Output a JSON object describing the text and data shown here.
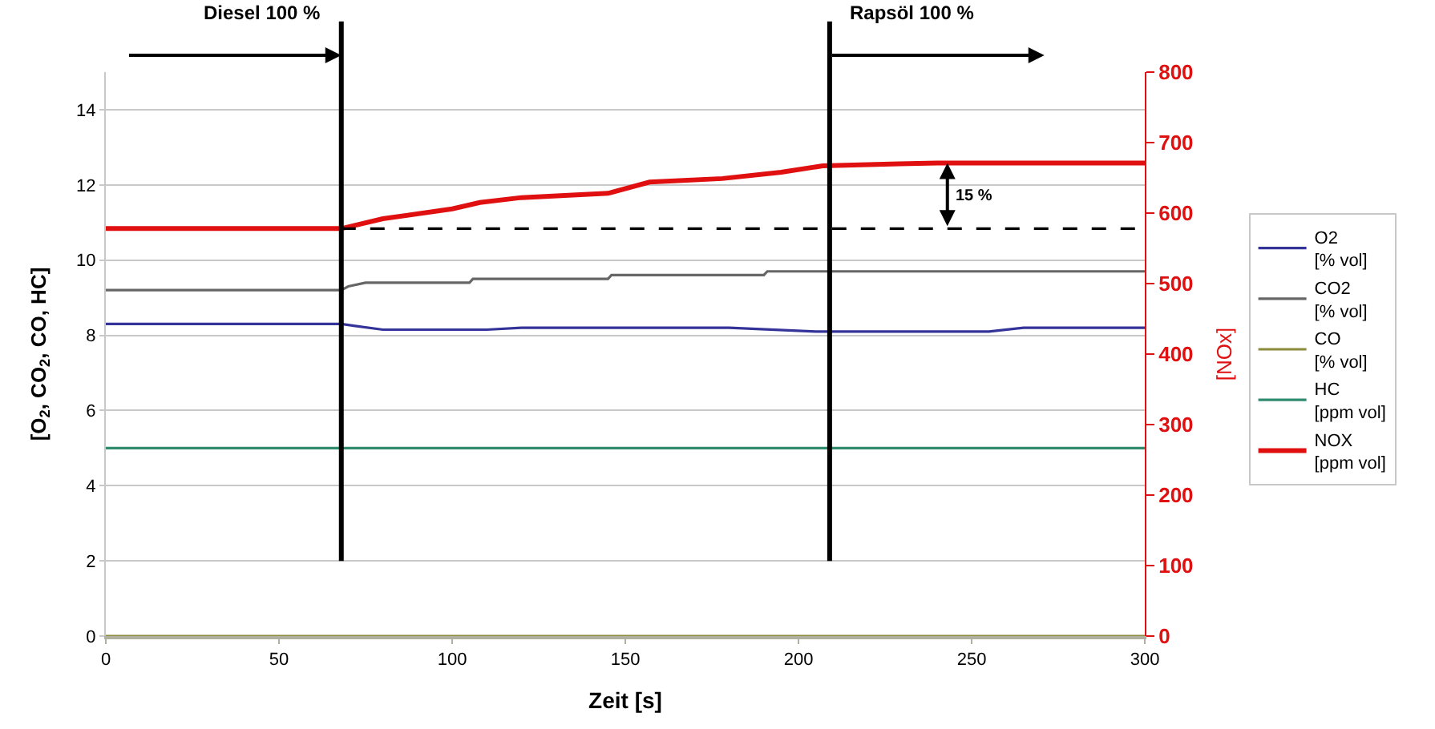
{
  "chart_data": {
    "type": "line",
    "xlabel": "Zeit [s]",
    "ylabel": "[O$_{2}$, CO$_{2}$, CO, HC]",
    "y2label": "[NOx]",
    "xlim": [
      0,
      300
    ],
    "xticks": [
      0,
      50,
      100,
      150,
      200,
      250,
      300
    ],
    "ylim": [
      0,
      15
    ],
    "yticks": [
      0,
      2,
      4,
      6,
      8,
      10,
      12,
      14
    ],
    "y2lim": [
      0,
      800
    ],
    "y2ticks": [
      0,
      100,
      200,
      300,
      400,
      500,
      600,
      700,
      800
    ],
    "grid": "y",
    "legend": "right",
    "marker": "none",
    "line_style": "solid",
    "series": [
      {
        "name": "O2\n[% vol]",
        "color": "#333399",
        "x": [
          0,
          68,
          72,
          80,
          110,
          120,
          180,
          205,
          255,
          265,
          300
        ],
        "values": [
          8.3,
          8.3,
          8.25,
          8.15,
          8.15,
          8.2,
          8.2,
          8.1,
          8.1,
          8.2,
          8.2
        ]
      },
      {
        "name": "CO2\n[% vol]",
        "color": "#666666",
        "x": [
          0,
          68,
          70,
          75,
          105,
          106,
          145,
          146,
          190,
          191,
          300
        ],
        "values": [
          9.2,
          9.2,
          9.3,
          9.4,
          9.4,
          9.5,
          9.5,
          9.6,
          9.6,
          9.7,
          9.7
        ]
      },
      {
        "name": "CO\n[% vol]",
        "color": "#8c8c3c",
        "x": [
          0,
          300
        ],
        "values": [
          0,
          0
        ]
      },
      {
        "name": "HC\n[ppm vol]",
        "color": "#2e8b6e",
        "x": [
          0,
          300
        ],
        "values": [
          5,
          5
        ]
      },
      {
        "name": "NOX\n[ppm vol]",
        "color": "#e01010",
        "axis": "y2",
        "x": [
          0,
          68,
          80,
          100,
          108,
          120,
          145,
          157,
          178,
          195,
          207,
          229,
          240,
          300
        ],
        "values": [
          578,
          578,
          592,
          606,
          615,
          622,
          628,
          644,
          649,
          658,
          667,
          670,
          671,
          671
        ]
      },
      {
        "color": "#000000",
        "axis": "y2",
        "line_style": "dashed",
        "x": [
          68,
          300
        ],
        "values": [
          578,
          578
        ]
      }
    ],
    "ref_lines": [
      {
        "axis": "x",
        "value": 68,
        "label": "Diesel 100 %",
        "color": "#000000"
      },
      {
        "axis": "x",
        "value": 209,
        "label": "Rapsöl 100 %",
        "color": "#000000"
      }
    ],
    "annotations": [
      "15 %"
    ]
  }
}
